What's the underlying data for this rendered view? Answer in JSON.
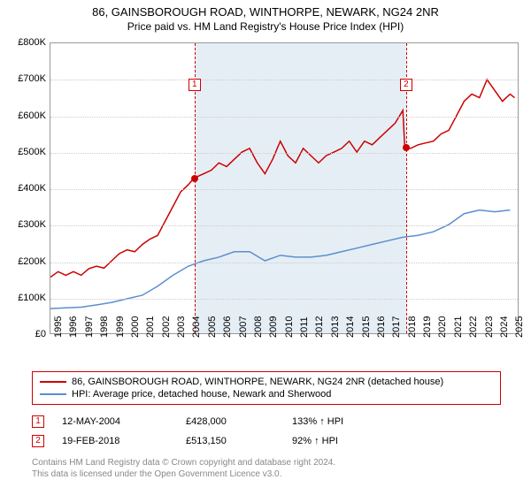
{
  "title1": "86, GAINSBOROUGH ROAD, WINTHORPE, NEWARK, NG24 2NR",
  "title2": "Price paid vs. HM Land Registry's House Price Index (HPI)",
  "chart": {
    "type": "line",
    "background_color": "#ffffff",
    "grid_color": "#cccccc",
    "shade_color": "#e6eef5",
    "x_start": 1995,
    "x_end": 2025.5,
    "y_start": 0,
    "y_end": 800000,
    "y_ticks": [
      0,
      100000,
      200000,
      300000,
      400000,
      500000,
      600000,
      700000,
      800000
    ],
    "y_tick_labels": [
      "£0",
      "£100K",
      "£200K",
      "£300K",
      "£400K",
      "£500K",
      "£600K",
      "£700K",
      "£800K"
    ],
    "x_ticks": [
      1995,
      1996,
      1997,
      1998,
      1999,
      2000,
      2001,
      2002,
      2003,
      2004,
      2005,
      2006,
      2007,
      2008,
      2009,
      2010,
      2011,
      2012,
      2013,
      2014,
      2015,
      2016,
      2017,
      2018,
      2019,
      2020,
      2021,
      2022,
      2023,
      2024,
      2025
    ],
    "x_tick_labels": [
      "1995",
      "1996",
      "1997",
      "1998",
      "1999",
      "2000",
      "2001",
      "2002",
      "2003",
      "2004",
      "2005",
      "2006",
      "2007",
      "2008",
      "2009",
      "2010",
      "2011",
      "2012",
      "2013",
      "2014",
      "2015",
      "2016",
      "2017",
      "2018",
      "2019",
      "2020",
      "2021",
      "2022",
      "2023",
      "2024",
      "2025"
    ],
    "label_fontsize": 11,
    "line_width": 1.5,
    "series": [
      {
        "name": "86, GAINSBOROUGH ROAD, WINTHORPE, NEWARK, NG24 2NR (detached house)",
        "color": "#cc0000",
        "points": [
          [
            1995,
            155000
          ],
          [
            1995.5,
            170000
          ],
          [
            1996,
            160000
          ],
          [
            1996.5,
            170000
          ],
          [
            1997,
            160000
          ],
          [
            1997.5,
            178000
          ],
          [
            1998,
            185000
          ],
          [
            1998.5,
            180000
          ],
          [
            1999,
            200000
          ],
          [
            1999.5,
            220000
          ],
          [
            2000,
            230000
          ],
          [
            2000.5,
            225000
          ],
          [
            2001,
            245000
          ],
          [
            2001.5,
            260000
          ],
          [
            2002,
            270000
          ],
          [
            2002.5,
            310000
          ],
          [
            2003,
            350000
          ],
          [
            2003.5,
            390000
          ],
          [
            2004,
            410000
          ],
          [
            2004.37,
            428000
          ],
          [
            2005,
            440000
          ],
          [
            2005.5,
            450000
          ],
          [
            2006,
            470000
          ],
          [
            2006.5,
            460000
          ],
          [
            2007,
            480000
          ],
          [
            2007.5,
            500000
          ],
          [
            2008,
            510000
          ],
          [
            2008.5,
            470000
          ],
          [
            2009,
            440000
          ],
          [
            2009.5,
            480000
          ],
          [
            2010,
            530000
          ],
          [
            2010.5,
            490000
          ],
          [
            2011,
            470000
          ],
          [
            2011.5,
            510000
          ],
          [
            2012,
            490000
          ],
          [
            2012.5,
            470000
          ],
          [
            2013,
            490000
          ],
          [
            2013.5,
            500000
          ],
          [
            2014,
            510000
          ],
          [
            2014.5,
            530000
          ],
          [
            2015,
            500000
          ],
          [
            2015.5,
            530000
          ],
          [
            2016,
            520000
          ],
          [
            2016.5,
            540000
          ],
          [
            2017,
            560000
          ],
          [
            2017.5,
            580000
          ],
          [
            2018,
            615000
          ],
          [
            2018.13,
            513150
          ],
          [
            2018.5,
            510000
          ],
          [
            2019,
            520000
          ],
          [
            2019.5,
            525000
          ],
          [
            2020,
            530000
          ],
          [
            2020.5,
            550000
          ],
          [
            2021,
            560000
          ],
          [
            2021.5,
            600000
          ],
          [
            2022,
            640000
          ],
          [
            2022.5,
            660000
          ],
          [
            2023,
            650000
          ],
          [
            2023.5,
            700000
          ],
          [
            2024,
            670000
          ],
          [
            2024.5,
            640000
          ],
          [
            2025,
            660000
          ],
          [
            2025.3,
            650000
          ]
        ]
      },
      {
        "name": "HPI: Average price, detached house, Newark and Sherwood",
        "color": "#5b8fcf",
        "points": [
          [
            1995,
            68000
          ],
          [
            1996,
            70000
          ],
          [
            1997,
            72000
          ],
          [
            1998,
            78000
          ],
          [
            1999,
            85000
          ],
          [
            2000,
            95000
          ],
          [
            2001,
            105000
          ],
          [
            2002,
            130000
          ],
          [
            2003,
            160000
          ],
          [
            2004,
            185000
          ],
          [
            2005,
            200000
          ],
          [
            2006,
            210000
          ],
          [
            2007,
            225000
          ],
          [
            2008,
            225000
          ],
          [
            2009,
            200000
          ],
          [
            2010,
            215000
          ],
          [
            2011,
            210000
          ],
          [
            2012,
            210000
          ],
          [
            2013,
            215000
          ],
          [
            2014,
            225000
          ],
          [
            2015,
            235000
          ],
          [
            2016,
            245000
          ],
          [
            2017,
            255000
          ],
          [
            2018,
            265000
          ],
          [
            2019,
            270000
          ],
          [
            2020,
            280000
          ],
          [
            2021,
            300000
          ],
          [
            2022,
            330000
          ],
          [
            2023,
            340000
          ],
          [
            2024,
            335000
          ],
          [
            2025,
            340000
          ]
        ]
      }
    ],
    "markers": [
      {
        "n": "1",
        "x": 2004.37,
        "y": 428000,
        "label_top_offset": 40
      },
      {
        "n": "2",
        "x": 2018.13,
        "y": 513150,
        "label_top_offset": 40
      }
    ],
    "shaded_range": [
      2004.37,
      2018.13
    ]
  },
  "legend": {
    "rows": [
      {
        "color": "#cc0000",
        "label": "86, GAINSBOROUGH ROAD, WINTHORPE, NEWARK, NG24 2NR (detached house)"
      },
      {
        "color": "#5b8fcf",
        "label": "HPI: Average price, detached house, Newark and Sherwood"
      }
    ]
  },
  "sales": [
    {
      "n": "1",
      "date": "12-MAY-2004",
      "price": "£428,000",
      "pct": "133% ↑ HPI"
    },
    {
      "n": "2",
      "date": "19-FEB-2018",
      "price": "£513,150",
      "pct": "92% ↑ HPI"
    }
  ],
  "footer1": "Contains HM Land Registry data © Crown copyright and database right 2024.",
  "footer2": "This data is licensed under the Open Government Licence v3.0."
}
